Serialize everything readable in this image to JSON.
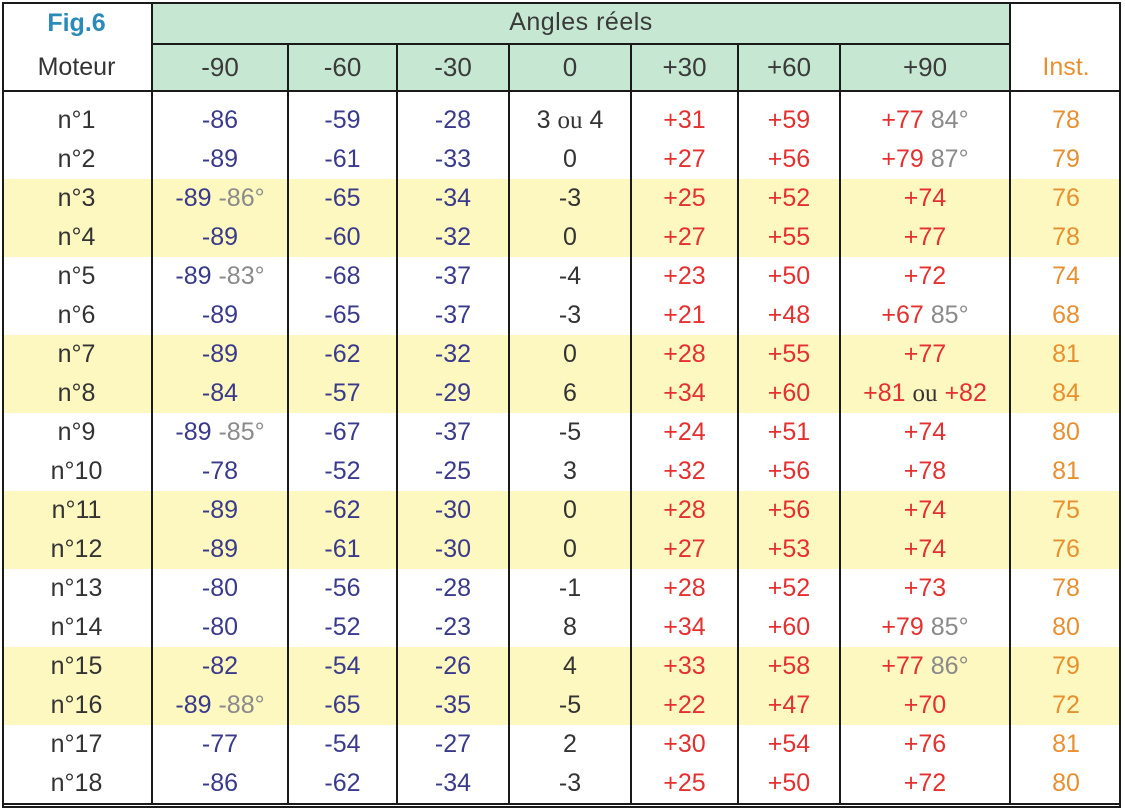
{
  "fig_label": "Fig.6",
  "moteur_label": "Moteur",
  "angles_title": "Angles réels",
  "inst_label": "Inst.",
  "angle_headers": [
    "-90",
    "-60",
    "-30",
    "0",
    "+30",
    "+60",
    "+90"
  ],
  "ou": "ou",
  "rows": [
    {
      "motor": "n°1",
      "v90n": "-86",
      "v90n_alt": "",
      "v60n": "-59",
      "v30n": "-28",
      "v0": "3",
      "v0_alt": "4",
      "v30p": "+31",
      "v60p": "+59",
      "v90p": "+77",
      "v90p_alt": "84°",
      "v90p_or": "",
      "inst": "78"
    },
    {
      "motor": "n°2",
      "v90n": "-89",
      "v90n_alt": "",
      "v60n": "-61",
      "v30n": "-33",
      "v0": "0",
      "v0_alt": "",
      "v30p": "+27",
      "v60p": "+56",
      "v90p": "+79",
      "v90p_alt": "87°",
      "v90p_or": "",
      "inst": "79"
    },
    {
      "motor": "n°3",
      "v90n": "-89",
      "v90n_alt": "-86°",
      "v60n": "-65",
      "v30n": "-34",
      "v0": "-3",
      "v0_alt": "",
      "v30p": "+25",
      "v60p": "+52",
      "v90p": "+74",
      "v90p_alt": "",
      "v90p_or": "",
      "inst": "76"
    },
    {
      "motor": "n°4",
      "v90n": "-89",
      "v90n_alt": "",
      "v60n": "-60",
      "v30n": "-32",
      "v0": "0",
      "v0_alt": "",
      "v30p": "+27",
      "v60p": "+55",
      "v90p": "+77",
      "v90p_alt": "",
      "v90p_or": "",
      "inst": "78"
    },
    {
      "motor": "n°5",
      "v90n": "-89",
      "v90n_alt": "-83°",
      "v60n": "-68",
      "v30n": "-37",
      "v0": "-4",
      "v0_alt": "",
      "v30p": "+23",
      "v60p": "+50",
      "v90p": "+72",
      "v90p_alt": "",
      "v90p_or": "",
      "inst": "74"
    },
    {
      "motor": "n°6",
      "v90n": "-89",
      "v90n_alt": "",
      "v60n": "-65",
      "v30n": "-37",
      "v0": "-3",
      "v0_alt": "",
      "v30p": "+21",
      "v60p": "+48",
      "v90p": "+67",
      "v90p_alt": "85°",
      "v90p_or": "",
      "inst": "68"
    },
    {
      "motor": "n°7",
      "v90n": "-89",
      "v90n_alt": "",
      "v60n": "-62",
      "v30n": "-32",
      "v0": "0",
      "v0_alt": "",
      "v30p": "+28",
      "v60p": "+55",
      "v90p": "+77",
      "v90p_alt": "",
      "v90p_or": "",
      "inst": "81"
    },
    {
      "motor": "n°8",
      "v90n": "-84",
      "v90n_alt": "",
      "v60n": "-57",
      "v30n": "-29",
      "v0": "6",
      "v0_alt": "",
      "v30p": "+34",
      "v60p": "+60",
      "v90p": "+81",
      "v90p_alt": "",
      "v90p_or": "+82",
      "inst": "84"
    },
    {
      "motor": "n°9",
      "v90n": "-89",
      "v90n_alt": "-85°",
      "v60n": "-67",
      "v30n": "-37",
      "v0": "-5",
      "v0_alt": "",
      "v30p": "+24",
      "v60p": "+51",
      "v90p": "+74",
      "v90p_alt": "",
      "v90p_or": "",
      "inst": "80"
    },
    {
      "motor": "n°10",
      "v90n": "-78",
      "v90n_alt": "",
      "v60n": "-52",
      "v30n": "-25",
      "v0": "3",
      "v0_alt": "",
      "v30p": "+32",
      "v60p": "+56",
      "v90p": "+78",
      "v90p_alt": "",
      "v90p_or": "",
      "inst": "81"
    },
    {
      "motor": "n°11",
      "v90n": "-89",
      "v90n_alt": "",
      "v60n": "-62",
      "v30n": "-30",
      "v0": "0",
      "v0_alt": "",
      "v30p": "+28",
      "v60p": "+56",
      "v90p": "+74",
      "v90p_alt": "",
      "v90p_or": "",
      "inst": "75"
    },
    {
      "motor": "n°12",
      "v90n": "-89",
      "v90n_alt": "",
      "v60n": "-61",
      "v30n": "-30",
      "v0": "0",
      "v0_alt": "",
      "v30p": "+27",
      "v60p": "+53",
      "v90p": "+74",
      "v90p_alt": "",
      "v90p_or": "",
      "inst": "76"
    },
    {
      "motor": "n°13",
      "v90n": "-80",
      "v90n_alt": "",
      "v60n": "-56",
      "v30n": "-28",
      "v0": "-1",
      "v0_alt": "",
      "v30p": "+28",
      "v60p": "+52",
      "v90p": "+73",
      "v90p_alt": "",
      "v90p_or": "",
      "inst": "78"
    },
    {
      "motor": "n°14",
      "v90n": "-80",
      "v90n_alt": "",
      "v60n": "-52",
      "v30n": "-23",
      "v0": "8",
      "v0_alt": "",
      "v30p": "+34",
      "v60p": "+60",
      "v90p": "+79",
      "v90p_alt": "85°",
      "v90p_or": "",
      "inst": "80"
    },
    {
      "motor": "n°15",
      "v90n": "-82",
      "v90n_alt": "",
      "v60n": "-54",
      "v30n": "-26",
      "v0": "4",
      "v0_alt": "",
      "v30p": "+33",
      "v60p": "+58",
      "v90p": "+77",
      "v90p_alt": "86°",
      "v90p_or": "",
      "inst": "79"
    },
    {
      "motor": "n°16",
      "v90n": "-89",
      "v90n_alt": "-88°",
      "v60n": "-65",
      "v30n": "-35",
      "v0": "-5",
      "v0_alt": "",
      "v30p": "+22",
      "v60p": "+47",
      "v90p": "+70",
      "v90p_alt": "",
      "v90p_or": "",
      "inst": "72"
    },
    {
      "motor": "n°17",
      "v90n": "-77",
      "v90n_alt": "",
      "v60n": "-54",
      "v30n": "-27",
      "v0": "2",
      "v0_alt": "",
      "v30p": "+30",
      "v60p": "+54",
      "v90p": "+76",
      "v90p_alt": "",
      "v90p_or": "",
      "inst": "81"
    },
    {
      "motor": "n°18",
      "v90n": "-86",
      "v90n_alt": "",
      "v60n": "-62",
      "v30n": "-34",
      "v0": "-3",
      "v0_alt": "",
      "v30p": "+25",
      "v60p": "+50",
      "v90p": "+72",
      "v90p_alt": "",
      "v90p_or": "",
      "inst": "80"
    }
  ],
  "colors": {
    "header_green": "#c6e8d2",
    "row_highlight": "#fdf7c0",
    "negative": "#3a3a8c",
    "positive": "#e53030",
    "alternate": "#8a8a8a",
    "inst": "#e89030",
    "fig_label": "#2a8ab8"
  }
}
